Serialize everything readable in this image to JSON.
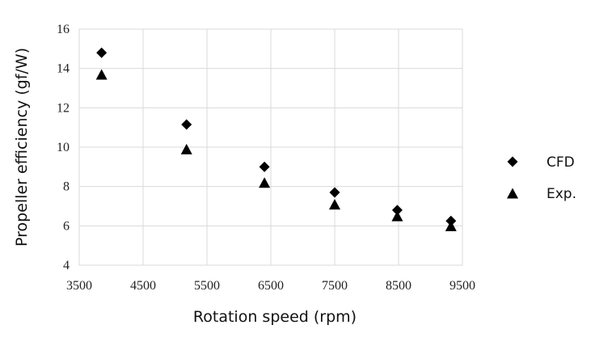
{
  "chart_data": {
    "type": "scatter",
    "title": "",
    "xlabel": "Rotation speed (rpm)",
    "ylabel": "Propeller efficiency (gf/W)",
    "xlim": [
      3500,
      9500
    ],
    "ylim": [
      4,
      16
    ],
    "xticks": [
      3500,
      4500,
      5500,
      6500,
      7500,
      8500,
      9500
    ],
    "yticks": [
      4,
      6,
      8,
      10,
      12,
      14,
      16
    ],
    "xtick_labels": [
      "3500",
      "4500",
      "5500",
      "6500",
      "7500",
      "8500",
      "9500"
    ],
    "ytick_labels": [
      "4",
      "6",
      "8",
      "10",
      "12",
      "14",
      "16"
    ],
    "grid": true,
    "legend": "right",
    "series": [
      {
        "name": "CFD",
        "marker": "diamond",
        "color": "#000000",
        "x": [
          3850,
          5180,
          6400,
          7500,
          8480,
          9320
        ],
        "y": [
          14.8,
          11.15,
          9.0,
          7.7,
          6.8,
          6.25
        ]
      },
      {
        "name": "Exp.",
        "marker": "triangle",
        "color": "#000000",
        "x": [
          3850,
          5180,
          6400,
          7500,
          8480,
          9320
        ],
        "y": [
          13.7,
          9.9,
          8.2,
          7.1,
          6.5,
          6.0
        ]
      }
    ]
  }
}
